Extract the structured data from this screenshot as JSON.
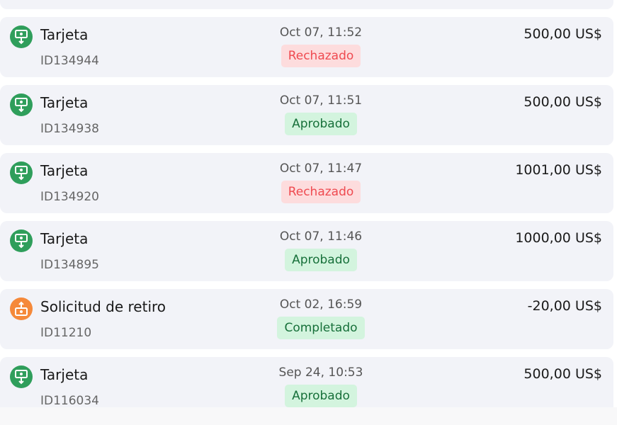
{
  "colors": {
    "deposit": "#2f9e5b",
    "withdrawal": "#f5893a",
    "approved_bg": "#d3f4de",
    "rejected_bg": "#fddcdd"
  },
  "transactions": [
    {
      "icon": "money-in-icon",
      "title": "Tarjeta",
      "id": "ID134944",
      "date": "Oct 07, 11:52",
      "status": "Rechazado",
      "amount": "500,00 US$"
    },
    {
      "icon": "money-in-icon",
      "title": "Tarjeta",
      "id": "ID134938",
      "date": "Oct 07, 11:51",
      "status": "Aprobado",
      "amount": "500,00 US$"
    },
    {
      "icon": "money-in-icon",
      "title": "Tarjeta",
      "id": "ID134920",
      "date": "Oct 07, 11:47",
      "status": "Rechazado",
      "amount": "1001,00 US$"
    },
    {
      "icon": "money-in-icon",
      "title": "Tarjeta",
      "id": "ID134895",
      "date": "Oct 07, 11:46",
      "status": "Aprobado",
      "amount": "1000,00 US$"
    },
    {
      "icon": "money-out-icon",
      "title": "Solicitud de retiro",
      "id": "ID11210",
      "date": "Oct 02, 16:59",
      "status": "Completado",
      "amount": "-20,00 US$"
    },
    {
      "icon": "money-in-icon",
      "title": "Tarjeta",
      "id": "ID116034",
      "date": "Sep 24, 10:53",
      "status": "Aprobado",
      "amount": "500,00 US$"
    }
  ]
}
